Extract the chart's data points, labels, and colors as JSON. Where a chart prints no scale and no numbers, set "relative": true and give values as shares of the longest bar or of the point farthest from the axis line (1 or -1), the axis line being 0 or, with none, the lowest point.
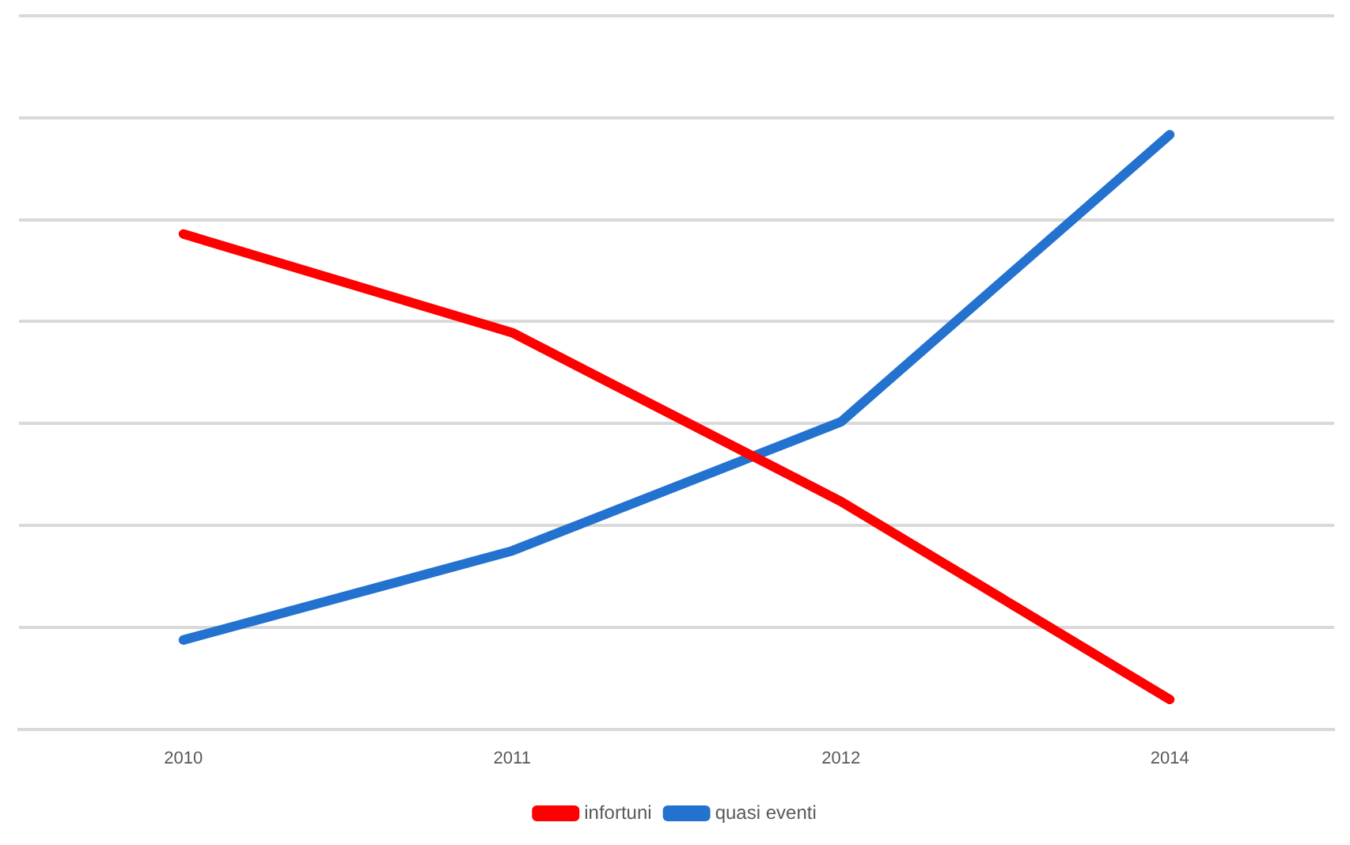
{
  "chart_data": {
    "type": "line",
    "relative": true,
    "categories": [
      "2010",
      "2011",
      "2012",
      "2014"
    ],
    "series": [
      {
        "name": "infortuni",
        "color": "#ff0000",
        "values": [
          0.833,
          0.667,
          0.383,
          0.05
        ]
      },
      {
        "name": "quasi eventi",
        "color": "#2372cf",
        "values": [
          0.15,
          0.3,
          0.517,
          1
        ]
      }
    ],
    "grid": "y",
    "legend": "bottom",
    "marker": "none",
    "line_style": "solid"
  }
}
